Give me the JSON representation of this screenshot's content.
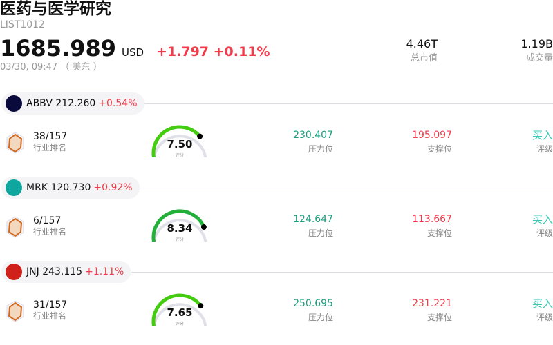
{
  "header": {
    "title": "医药与医学研究",
    "code": "LIST1012",
    "price": "1685.989",
    "currency": "USD",
    "change": "+1.797 +0.11%",
    "time": "03/30, 09:47 （ 美东 ）",
    "stats": [
      {
        "value": "4.46T",
        "label": "总市值"
      },
      {
        "value": "1.19B",
        "label": "成交量"
      }
    ]
  },
  "colors": {
    "up": "#f03c4b",
    "resistance": "#1a9e7e",
    "buy": "#3cc8b4",
    "gauge_track": "#e0e0e8"
  },
  "stocks": [
    {
      "ticker": "ABBV",
      "price": "212.260",
      "change": "+0.54%",
      "logo_text": "abbvie",
      "logo_color": "#0a0a3c",
      "rank": "38/157",
      "rank_label": "行业排名",
      "score": "7.50",
      "score_value": 7.5,
      "score_label": "评分",
      "gauge_color": "#44cc11",
      "resistance": "230.407",
      "resistance_label": "压力位",
      "support": "195.097",
      "support_label": "支撑位",
      "rating": "买入",
      "rating_label": "评级"
    },
    {
      "ticker": "MRK",
      "price": "120.730",
      "change": "+0.92%",
      "logo_text": "merck",
      "logo_color": "#0fa6a0",
      "rank": "6/157",
      "rank_label": "行业排名",
      "score": "8.34",
      "score_value": 8.34,
      "score_label": "评分",
      "gauge_color": "#22b03a",
      "resistance": "124.647",
      "resistance_label": "压力位",
      "support": "113.667",
      "support_label": "支撑位",
      "rating": "买入",
      "rating_label": "评级"
    },
    {
      "ticker": "JNJ",
      "price": "243.115",
      "change": "+1.11%",
      "logo_text": "jnj",
      "logo_color": "#d0201a",
      "rank": "31/157",
      "rank_label": "行业排名",
      "score": "7.65",
      "score_value": 7.65,
      "score_label": "评分",
      "gauge_color": "#44cc11",
      "resistance": "250.695",
      "resistance_label": "压力位",
      "support": "231.221",
      "support_label": "支撑位",
      "rating": "买入",
      "rating_label": "评级"
    }
  ]
}
